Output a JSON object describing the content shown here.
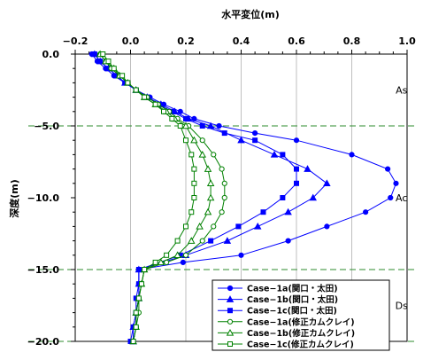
{
  "chart_data": {
    "type": "line",
    "xlabel": "水平変位(m)",
    "ylabel": "深度(m)",
    "xlim": [
      -0.2,
      1.0
    ],
    "ylim": [
      -20.0,
      0.0
    ],
    "x_ticks": [
      "−0.2",
      "0.0",
      "0.2",
      "0.4",
      "0.6",
      "0.8",
      "1.0"
    ],
    "y_ticks": [
      "0.0",
      "−5.0",
      "−10.0",
      "−15.0",
      "−20.0"
    ],
    "grid": true,
    "legend_position": "bottom-right",
    "layer_boundaries": [
      -5.0,
      -15.0,
      -20.0
    ],
    "annotations": [
      {
        "text": "As",
        "x": 0.98,
        "y": -2.5
      },
      {
        "text": "Ac",
        "x": 0.98,
        "y": -10.0
      },
      {
        "text": "Ds",
        "x": 0.98,
        "y": -17.5
      }
    ],
    "series": [
      {
        "name": "Case−1a(関口・太田)",
        "color": "#0000ff",
        "marker": "circle-filled",
        "x": [
          -0.14,
          -0.12,
          -0.09,
          -0.06,
          -0.02,
          0.02,
          0.07,
          0.12,
          0.18,
          0.23,
          0.32,
          0.45,
          0.6,
          0.8,
          0.93,
          0.96,
          0.94,
          0.85,
          0.71,
          0.57,
          0.4,
          0.19,
          0.03,
          0.03,
          0.03,
          0.02,
          0.02,
          0.01
        ],
        "y": [
          0.0,
          -0.5,
          -1.0,
          -1.5,
          -2.0,
          -2.5,
          -3.0,
          -3.5,
          -4.0,
          -4.5,
          -5.0,
          -5.5,
          -6.0,
          -7.0,
          -8.0,
          -9.0,
          -10.0,
          -11.0,
          -12.0,
          -13.0,
          -14.0,
          -14.5,
          -15.0,
          -16.0,
          -17.0,
          -18.0,
          -19.0,
          -20.0
        ]
      },
      {
        "name": "Case−1b(関口・太田)",
        "color": "#0000ff",
        "marker": "triangle-filled",
        "x": [
          -0.13,
          -0.11,
          -0.08,
          -0.05,
          -0.02,
          0.02,
          0.06,
          0.11,
          0.16,
          0.21,
          0.29,
          0.4,
          0.52,
          0.64,
          0.71,
          0.66,
          0.57,
          0.46,
          0.35,
          0.2,
          0.03,
          0.03,
          0.03,
          0.02,
          0.01,
          0.01
        ],
        "y": [
          0.0,
          -0.5,
          -1.0,
          -1.5,
          -2.0,
          -2.5,
          -3.0,
          -3.5,
          -4.0,
          -4.5,
          -5.0,
          -6.0,
          -7.0,
          -8.0,
          -9.0,
          -10.0,
          -11.0,
          -12.0,
          -13.0,
          -14.0,
          -15.0,
          -16.0,
          -17.0,
          -18.0,
          -19.0,
          -20.0
        ]
      },
      {
        "name": "Case−1c(関口・太田)",
        "color": "#0000ff",
        "marker": "square-filled",
        "x": [
          -0.13,
          -0.11,
          -0.08,
          -0.05,
          -0.02,
          0.02,
          0.06,
          0.1,
          0.15,
          0.2,
          0.26,
          0.34,
          0.45,
          0.55,
          0.6,
          0.6,
          0.55,
          0.48,
          0.39,
          0.29,
          0.18,
          0.03,
          0.03,
          0.02,
          0.02,
          0.01,
          0.0
        ],
        "y": [
          0.0,
          -0.5,
          -1.0,
          -1.5,
          -2.0,
          -2.5,
          -3.0,
          -3.5,
          -4.0,
          -4.5,
          -5.0,
          -5.5,
          -6.0,
          -7.0,
          -8.0,
          -9.0,
          -10.0,
          -11.0,
          -12.0,
          -13.0,
          -14.0,
          -15.0,
          -16.0,
          -17.0,
          -18.0,
          -19.0,
          -20.0
        ]
      },
      {
        "name": "Case−1a(修正カムクレイ)",
        "color": "#008000",
        "marker": "circle-open",
        "x": [
          -0.11,
          -0.09,
          -0.07,
          -0.04,
          -0.01,
          0.02,
          0.06,
          0.1,
          0.14,
          0.17,
          0.21,
          0.26,
          0.3,
          0.33,
          0.34,
          0.34,
          0.33,
          0.3,
          0.26,
          0.2,
          0.13,
          0.05,
          0.04,
          0.03,
          0.03,
          0.02,
          0.01
        ],
        "y": [
          0.0,
          -0.5,
          -1.0,
          -1.5,
          -2.0,
          -2.5,
          -3.0,
          -3.5,
          -4.0,
          -4.5,
          -5.0,
          -6.0,
          -7.0,
          -8.0,
          -9.0,
          -10.0,
          -11.0,
          -12.0,
          -13.0,
          -14.0,
          -14.5,
          -15.0,
          -16.0,
          -17.0,
          -18.0,
          -19.0,
          -20.0
        ]
      },
      {
        "name": "Case−1b(修正カムクレイ)",
        "color": "#008000",
        "marker": "triangle-open",
        "x": [
          -0.11,
          -0.09,
          -0.06,
          -0.04,
          -0.01,
          0.02,
          0.05,
          0.09,
          0.13,
          0.16,
          0.2,
          0.23,
          0.26,
          0.28,
          0.29,
          0.29,
          0.28,
          0.25,
          0.22,
          0.17,
          0.11,
          0.05,
          0.04,
          0.03,
          0.02,
          0.02,
          0.01
        ],
        "y": [
          0.0,
          -0.5,
          -1.0,
          -1.5,
          -2.0,
          -2.5,
          -3.0,
          -3.5,
          -4.0,
          -4.5,
          -5.0,
          -6.0,
          -7.0,
          -8.0,
          -9.0,
          -10.0,
          -11.0,
          -12.0,
          -13.0,
          -14.0,
          -14.5,
          -15.0,
          -16.0,
          -17.0,
          -18.0,
          -19.0,
          -20.0
        ]
      },
      {
        "name": "Case−1c(修正カムクレイ)",
        "color": "#008000",
        "marker": "square-open",
        "x": [
          -0.1,
          -0.08,
          -0.06,
          -0.03,
          -0.01,
          0.02,
          0.05,
          0.09,
          0.12,
          0.15,
          0.18,
          0.2,
          0.22,
          0.23,
          0.23,
          0.23,
          0.22,
          0.2,
          0.17,
          0.13,
          0.09,
          0.05,
          0.04,
          0.03,
          0.02,
          0.02,
          0.01
        ],
        "y": [
          0.0,
          -0.5,
          -1.0,
          -1.5,
          -2.0,
          -2.5,
          -3.0,
          -3.5,
          -4.0,
          -4.5,
          -5.0,
          -6.0,
          -7.0,
          -8.0,
          -9.0,
          -10.0,
          -11.0,
          -12.0,
          -13.0,
          -14.0,
          -14.5,
          -15.0,
          -16.0,
          -17.0,
          -18.0,
          -19.0,
          -20.0
        ]
      }
    ]
  }
}
